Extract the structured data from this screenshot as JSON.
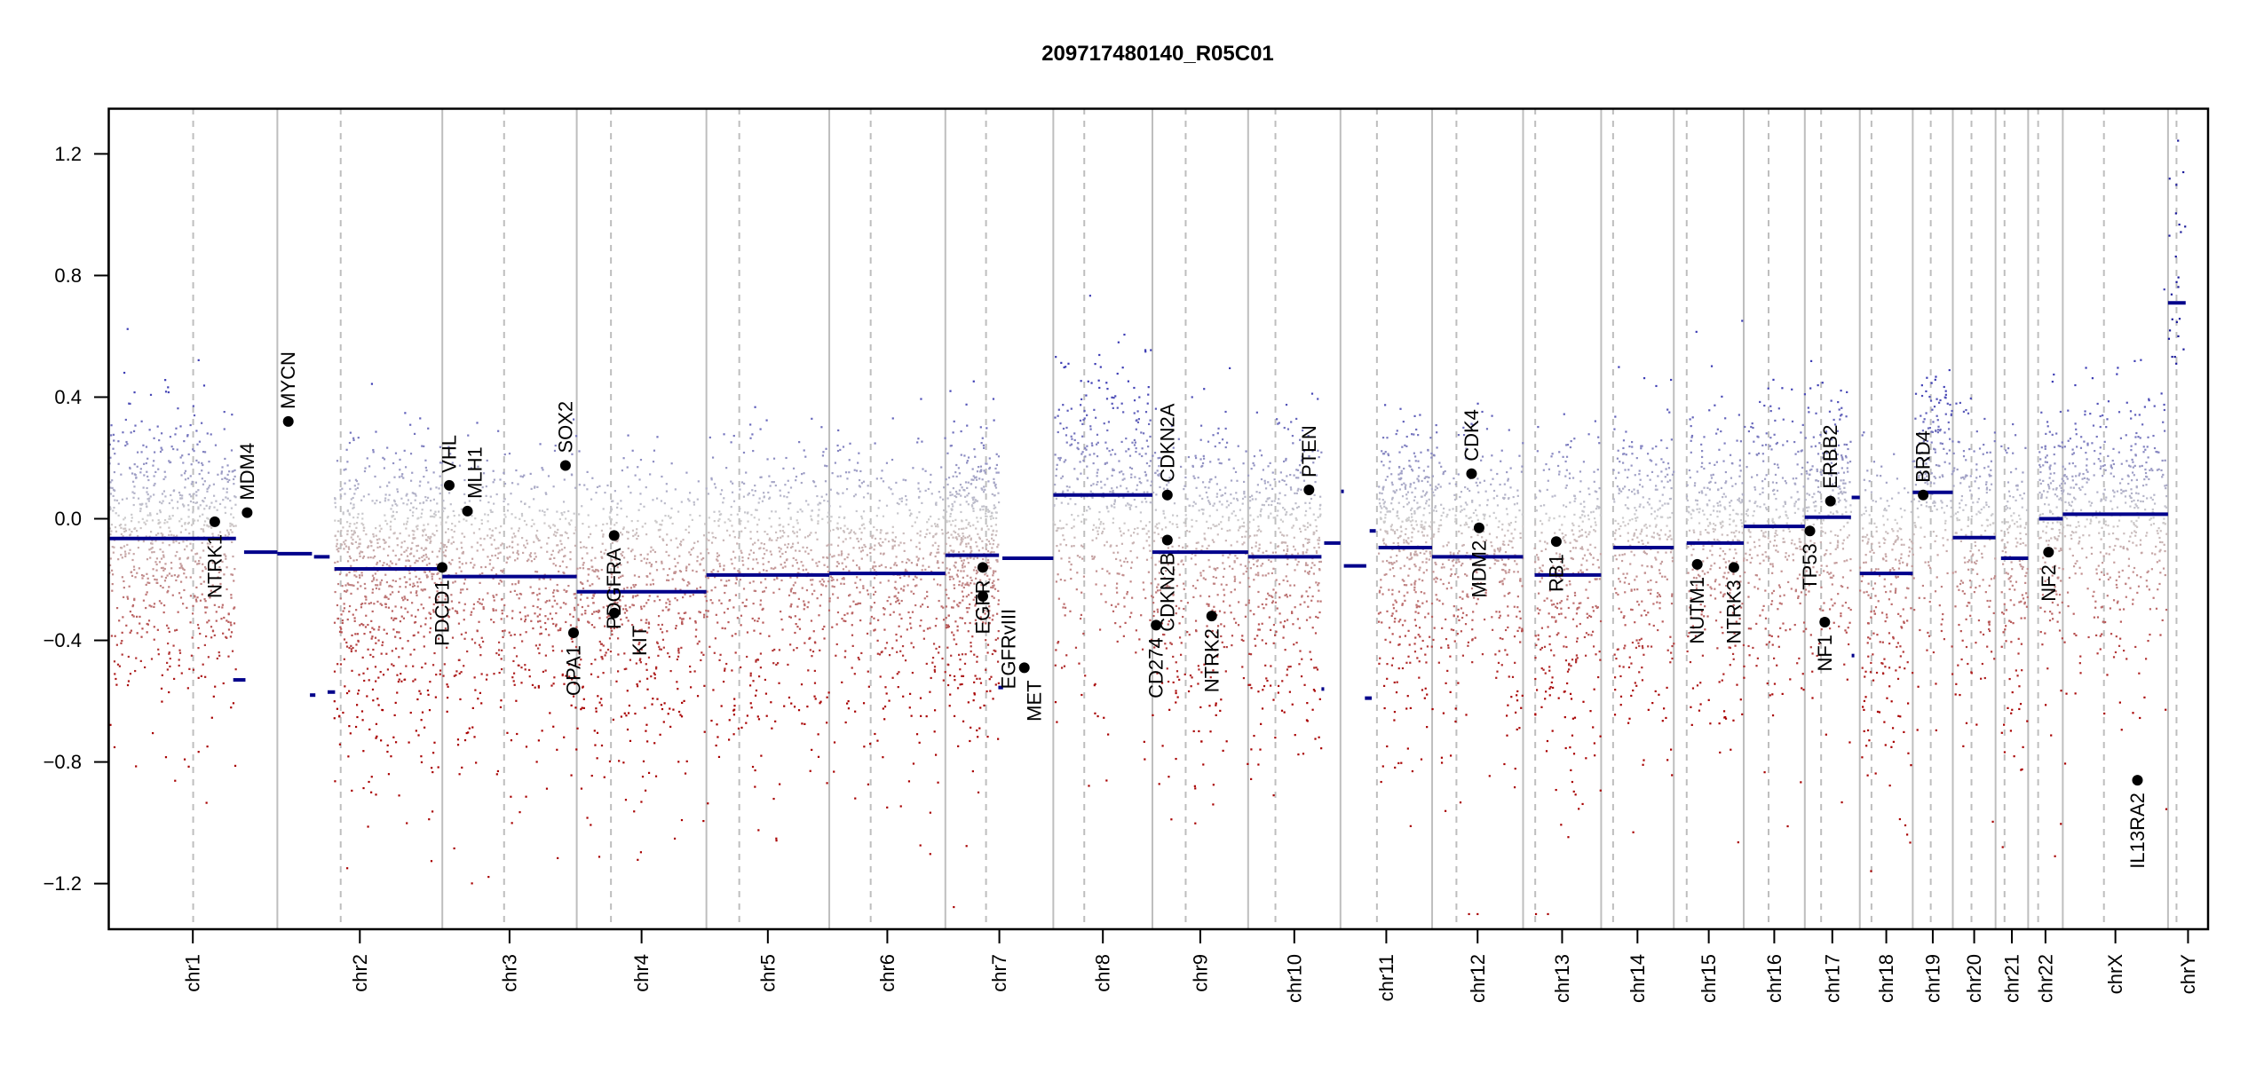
{
  "chart_data": {
    "type": "scatter",
    "title": "209717480140_R05C01",
    "xlabel": "",
    "ylabel": "",
    "ylim": [
      -1.35,
      1.35
    ],
    "y_ticks": [
      "1.2",
      "0.8",
      "0.4",
      "0.0",
      "−0.4",
      "−0.8",
      "−1.2"
    ],
    "y_tick_values": [
      1.2,
      0.8,
      0.4,
      0.0,
      -0.4,
      -0.8,
      -1.2
    ],
    "grid": false,
    "x_unit": "Mb",
    "chromosomes": [
      "chr1",
      "chr2",
      "chr3",
      "chr4",
      "chr5",
      "chr6",
      "chr7",
      "chr8",
      "chr9",
      "chr10",
      "chr11",
      "chr12",
      "chr13",
      "chr14",
      "chr15",
      "chr16",
      "chr17",
      "chr18",
      "chr19",
      "chr20",
      "chr21",
      "chr22",
      "chrX",
      "chrY"
    ],
    "colors": {
      "segment": "#00008b",
      "gain": "#3c3cb4",
      "neutral": "#cdcdcd",
      "loss": "#a80000",
      "gene": "#000000",
      "separator": "#bebebe"
    },
    "segments": [
      {
        "chr": "chr1",
        "start": 0,
        "end": 188,
        "value": -0.065
      },
      {
        "chr": "chr1",
        "start": 184,
        "end": 202,
        "value": -0.53
      },
      {
        "chr": "chr1",
        "start": 200,
        "end": 249,
        "value": -0.11
      },
      {
        "chr": "chr2",
        "start": 0,
        "end": 51,
        "value": -0.115
      },
      {
        "chr": "chr2",
        "start": 48,
        "end": 56,
        "value": -0.58
      },
      {
        "chr": "chr2",
        "start": 54,
        "end": 77,
        "value": -0.125
      },
      {
        "chr": "chr2",
        "start": 74,
        "end": 85,
        "value": -0.57
      },
      {
        "chr": "chr2",
        "start": 84,
        "end": 243,
        "value": -0.165
      },
      {
        "chr": "chr3",
        "start": 0,
        "end": 198,
        "value": -0.19
      },
      {
        "chr": "chr4",
        "start": 0,
        "end": 191,
        "value": -0.24
      },
      {
        "chr": "chr5",
        "start": 0,
        "end": 181,
        "value": -0.185
      },
      {
        "chr": "chr6",
        "start": 0,
        "end": 171,
        "value": -0.18
      },
      {
        "chr": "chr7",
        "start": 0,
        "end": 79,
        "value": -0.12
      },
      {
        "chr": "chr7",
        "start": 78,
        "end": 85,
        "value": -0.555
      },
      {
        "chr": "chr7",
        "start": 84,
        "end": 159,
        "value": -0.13
      },
      {
        "chr": "chr8",
        "start": 0,
        "end": 146,
        "value": 0.078
      },
      {
        "chr": "chr9",
        "start": 0,
        "end": 141,
        "value": -0.11
      },
      {
        "chr": "chr10",
        "start": 0,
        "end": 108,
        "value": -0.125
      },
      {
        "chr": "chr10",
        "start": 108,
        "end": 112,
        "value": -0.56
      },
      {
        "chr": "chr10",
        "start": 112,
        "end": 136,
        "value": -0.08
      },
      {
        "chr": "chr11",
        "start": 1,
        "end": 3,
        "value": 0.09
      },
      {
        "chr": "chr11",
        "start": 5,
        "end": 38,
        "value": -0.155
      },
      {
        "chr": "chr11",
        "start": 36,
        "end": 46,
        "value": -0.59
      },
      {
        "chr": "chr11",
        "start": 43,
        "end": 52,
        "value": -0.04
      },
      {
        "chr": "chr11",
        "start": 56,
        "end": 135,
        "value": -0.095
      },
      {
        "chr": "chr12",
        "start": 0,
        "end": 134,
        "value": -0.125
      },
      {
        "chr": "chr13",
        "start": 17,
        "end": 115,
        "value": -0.185
      },
      {
        "chr": "chr14",
        "start": 18,
        "end": 107,
        "value": -0.095
      },
      {
        "chr": "chr15",
        "start": 19,
        "end": 103,
        "value": -0.08
      },
      {
        "chr": "chr16",
        "start": 0,
        "end": 90,
        "value": -0.025
      },
      {
        "chr": "chr17",
        "start": 0,
        "end": 68,
        "value": 0.005
      },
      {
        "chr": "chr17",
        "start": 69,
        "end": 70,
        "value": -0.45
      },
      {
        "chr": "chr17",
        "start": 69,
        "end": 81,
        "value": 0.07
      },
      {
        "chr": "chr18",
        "start": 0,
        "end": 78,
        "value": -0.18
      },
      {
        "chr": "chr19",
        "start": 0,
        "end": 59,
        "value": 0.087
      },
      {
        "chr": "chr20",
        "start": 0,
        "end": 63,
        "value": -0.062
      },
      {
        "chr": "chr21",
        "start": 8,
        "end": 48,
        "value": -0.13
      },
      {
        "chr": "chr22",
        "start": 16,
        "end": 51,
        "value": 0.0
      },
      {
        "chr": "chrX",
        "start": 0,
        "end": 155,
        "value": 0.015
      },
      {
        "chr": "chrY",
        "start": 0,
        "end": 26,
        "value": 0.71
      }
    ],
    "genes": [
      {
        "name": "NTRK1",
        "chr": "chr1",
        "pos": 156.8,
        "value": -0.01,
        "label": "below"
      },
      {
        "name": "MDM4",
        "chr": "chr1",
        "pos": 204.5,
        "value": 0.02,
        "label": "above"
      },
      {
        "name": "MYCN",
        "chr": "chr2",
        "pos": 16.1,
        "value": 0.32,
        "label": "above"
      },
      {
        "name": "PDCD1",
        "chr": "chr2",
        "pos": 242.8,
        "value": -0.16,
        "label": "below"
      },
      {
        "name": "VHL",
        "chr": "chr3",
        "pos": 10.2,
        "value": 0.11,
        "label": "above"
      },
      {
        "name": "MLH1",
        "chr": "chr3",
        "pos": 37.0,
        "value": 0.025,
        "label": "above"
      },
      {
        "name": "SOX2",
        "chr": "chr3",
        "pos": 181.4,
        "value": 0.175,
        "label": "above"
      },
      {
        "name": "OPA1",
        "chr": "chr3",
        "pos": 193.3,
        "value": -0.375,
        "label": "below"
      },
      {
        "name": "KIT",
        "chr": "chr4",
        "pos": 55.5,
        "value": -0.31,
        "label": "below"
      },
      {
        "name": "PDGFRA",
        "chr": "chr4",
        "pos": 55.1,
        "value": -0.055,
        "label": "below"
      },
      {
        "name": "EGFR",
        "chr": "chr7",
        "pos": 55.1,
        "value": -0.16,
        "label": "below"
      },
      {
        "name": "EGFRvIII",
        "chr": "chr7",
        "pos": 55.2,
        "value": -0.255,
        "label": "below"
      },
      {
        "name": "MET",
        "chr": "chr7",
        "pos": 116.3,
        "value": -0.49,
        "label": "below"
      },
      {
        "name": "CDKN2A",
        "chr": "chr9",
        "pos": 21.97,
        "value": 0.078,
        "label": "above"
      },
      {
        "name": "CDKN2B",
        "chr": "chr9",
        "pos": 22.0,
        "value": -0.07,
        "label": "below"
      },
      {
        "name": "CD274",
        "chr": "chr9",
        "pos": 5.45,
        "value": -0.35,
        "label": "below"
      },
      {
        "name": "NTRK2",
        "chr": "chr9",
        "pos": 87.3,
        "value": -0.32,
        "label": "below"
      },
      {
        "name": "PTEN",
        "chr": "chr10",
        "pos": 89.6,
        "value": 0.095,
        "label": "above"
      },
      {
        "name": "CDK4",
        "chr": "chr12",
        "pos": 58.1,
        "value": 0.148,
        "label": "above"
      },
      {
        "name": "MDM2",
        "chr": "chr12",
        "pos": 69.2,
        "value": -0.03,
        "label": "below"
      },
      {
        "name": "RB1",
        "chr": "chr13",
        "pos": 48.9,
        "value": -0.075,
        "label": "below"
      },
      {
        "name": "NUTM1",
        "chr": "chr15",
        "pos": 34.6,
        "value": -0.15,
        "label": "below"
      },
      {
        "name": "NTRK3",
        "chr": "chr15",
        "pos": 88.5,
        "value": -0.16,
        "label": "below"
      },
      {
        "name": "TP53",
        "chr": "chr17",
        "pos": 7.5,
        "value": -0.04,
        "label": "below"
      },
      {
        "name": "NF1",
        "chr": "chr17",
        "pos": 29.4,
        "value": -0.34,
        "label": "below"
      },
      {
        "name": "ERBB2",
        "chr": "chr17",
        "pos": 37.8,
        "value": 0.058,
        "label": "above"
      },
      {
        "name": "BRD4",
        "chr": "chr19",
        "pos": 15.4,
        "value": 0.078,
        "label": "above"
      },
      {
        "name": "NF2",
        "chr": "chr22",
        "pos": 30.0,
        "value": -0.11,
        "label": "below"
      },
      {
        "name": "IL13RA2",
        "chr": "chrX",
        "pos": 110.0,
        "value": -0.86,
        "label": "below"
      }
    ]
  }
}
